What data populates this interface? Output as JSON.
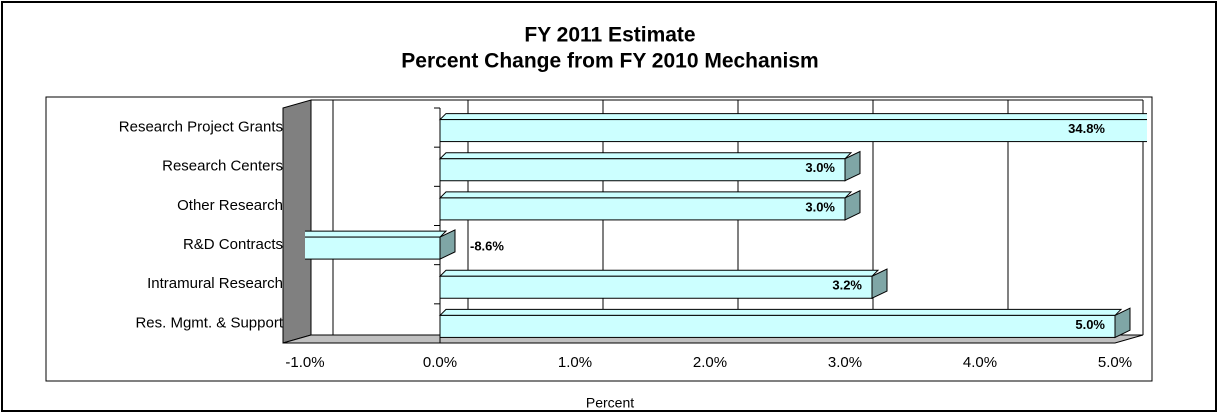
{
  "chart_data": {
    "type": "bar",
    "orientation": "horizontal",
    "title": "FY 2011 Estimate",
    "subtitle": "Percent Change from FY 2010 Mechanism",
    "xlabel": "Percent",
    "categories": [
      "Research Project Grants",
      "Research Centers",
      "Other Research",
      "R&D Contracts",
      "Intramural Research",
      "Res. Mgmt. & Support"
    ],
    "values": [
      34.8,
      3.0,
      3.0,
      -8.6,
      3.2,
      5.0
    ],
    "value_labels": [
      "34.8%",
      "3.0%",
      "3.0%",
      "-8.6%",
      "3.2%",
      "5.0%"
    ],
    "color": "#ccffff",
    "xlim": [
      -1,
      5
    ],
    "xticks": [
      {
        "value": -1,
        "label": "-1.0%"
      },
      {
        "value": 0,
        "label": "0.0%"
      },
      {
        "value": 1,
        "label": "1.0%"
      },
      {
        "value": 2,
        "label": "2.0%"
      },
      {
        "value": 3,
        "label": "3.0%"
      },
      {
        "value": 4,
        "label": "4.0%"
      },
      {
        "value": 5,
        "label": "5.0%"
      }
    ],
    "grid": true
  }
}
